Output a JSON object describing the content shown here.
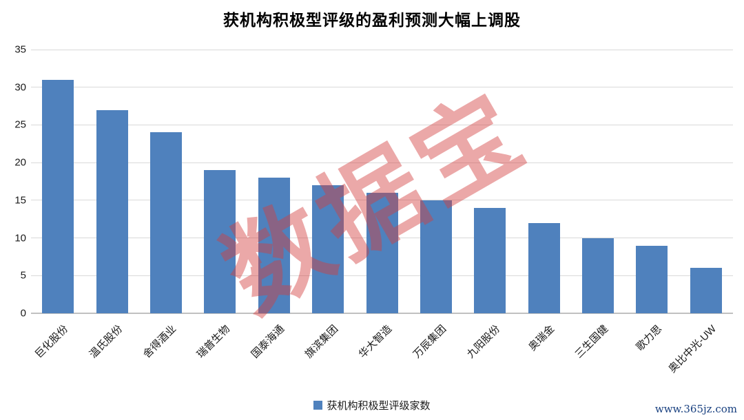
{
  "title": "获机构积极型评级的盈利预测大幅上调股",
  "watermark_text": "数据宝",
  "source_link": "www.365jz.com",
  "legend": {
    "label": "获机构积极型评级家数"
  },
  "colors": {
    "bar": "#4f81bd",
    "gridline": "#d9d9d9",
    "axis_line": "#c0c0c0",
    "watermark": "rgba(211, 63, 63, 0.45)",
    "link": "#173f7f",
    "text": "#1a1a1a"
  },
  "chart_data": {
    "type": "bar",
    "title": "获机构积极型评级的盈利预测大幅上调股",
    "series_name": "获机构积极型评级家数",
    "categories": [
      "巨化股份",
      "温氏股份",
      "舍得酒业",
      "瑞普生物",
      "国泰海通",
      "旗滨集团",
      "华大智造",
      "万辰集团",
      "九阳股份",
      "奥瑞金",
      "三生国健",
      "歌力思",
      "奥比中光-UW"
    ],
    "values": [
      31,
      27,
      24,
      19,
      18,
      17,
      16,
      15,
      14,
      12,
      10,
      9,
      6
    ],
    "xlabel": "",
    "ylabel": "",
    "ylim": [
      0,
      35
    ],
    "yticks": [
      0,
      5,
      10,
      15,
      20,
      25,
      30,
      35
    ],
    "grid": true,
    "legend_position": "bottom",
    "x_tick_rotation_deg": 45
  }
}
